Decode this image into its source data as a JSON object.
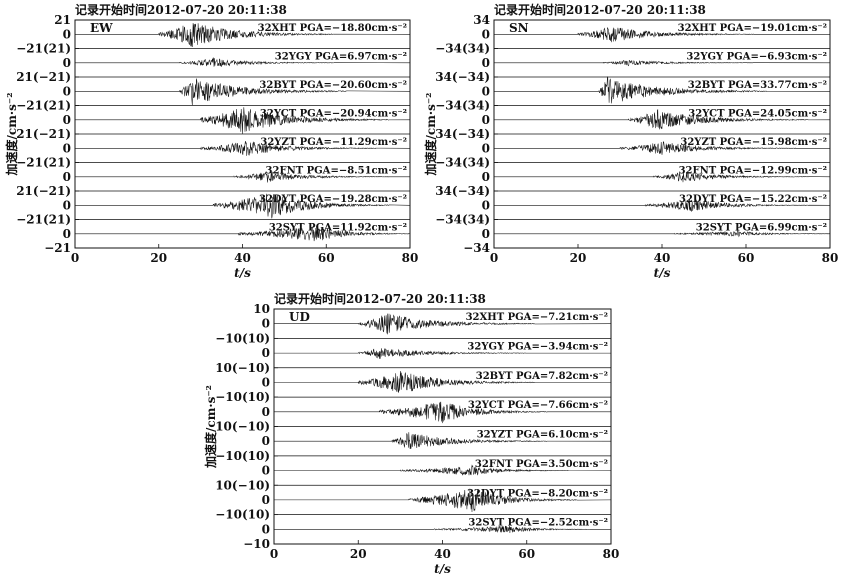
{
  "record_start": "记录开始时间2012-07-20  20:11:38",
  "y_axis_label": "加速度/cm·s⁻²",
  "x_axis_label": "t/s",
  "chart_data": [
    {
      "type": "line",
      "component": "EW",
      "xlim": [
        0,
        80
      ],
      "x_ticks": [
        "0",
        "20",
        "40",
        "60",
        "80"
      ],
      "y_ticks_top": "21",
      "y_ticks_between": [
        "−21(21)",
        "21(−21)",
        "−21(21)",
        "21(−21)",
        "−21(21)",
        "21(−21)",
        "−21(21)"
      ],
      "y_ticks_bottom": "−21",
      "y_zero": "0",
      "traces": [
        {
          "station": "32XHT",
          "label": "32XHT PGA=−18.80cm·s⁻²",
          "pga": -18.8,
          "t_start": 20,
          "t_peak": 28,
          "t_end": 62
        },
        {
          "station": "32YGY",
          "label": "32YGY PGA=6.97cm·s⁻²",
          "pga": 6.97,
          "t_start": 25,
          "t_peak": 33,
          "t_end": 62
        },
        {
          "station": "32BYT",
          "label": "32BYT PGA=−20.60cm·s⁻²",
          "pga": -20.6,
          "t_start": 25,
          "t_peak": 28,
          "t_end": 65
        },
        {
          "station": "32YCT",
          "label": "32YCT PGA=−20.94cm·s⁻²",
          "pga": -20.94,
          "t_start": 30,
          "t_peak": 40,
          "t_end": 75
        },
        {
          "station": "32YZT",
          "label": "32YZT PGA=−11.29cm·s⁻²",
          "pga": -11.29,
          "t_start": 30,
          "t_peak": 41,
          "t_end": 72
        },
        {
          "station": "32FNT",
          "label": "32FNT PGA=−8.51cm·s⁻²",
          "pga": -8.51,
          "t_start": 38,
          "t_peak": 46,
          "t_end": 75
        },
        {
          "station": "32DYT",
          "label": "32DYT PGA=−19.28cm·s⁻²",
          "pga": -19.28,
          "t_start": 33,
          "t_peak": 47,
          "t_end": 75
        },
        {
          "station": "32SYT",
          "label": "32SYT PGA=11.92cm·s⁻²",
          "pga": 11.92,
          "t_start": 39,
          "t_peak": 58,
          "t_end": 80
        }
      ]
    },
    {
      "type": "line",
      "component": "SN",
      "xlim": [
        0,
        80
      ],
      "x_ticks": [
        "0",
        "20",
        "40",
        "60",
        "80"
      ],
      "y_ticks_top": "34",
      "y_ticks_between": [
        "−34(34)",
        "34(−34)",
        "−34(34)",
        "34(−34)",
        "−34(34)",
        "34(−34)",
        "−34(34)"
      ],
      "y_ticks_bottom": "−34",
      "y_zero": "0",
      "traces": [
        {
          "station": "32XHT",
          "label": "32XHT PGA=−19.01cm·s⁻²",
          "pga": -19.01,
          "t_start": 20,
          "t_peak": 28,
          "t_end": 62
        },
        {
          "station": "32YGY",
          "label": "32YGY PGA=−6.93cm·s⁻²",
          "pga": -6.93,
          "t_start": 26,
          "t_peak": 32,
          "t_end": 62
        },
        {
          "station": "32BYT",
          "label": "32BYT PGA=33.77cm·s⁻²",
          "pga": 33.77,
          "t_start": 25,
          "t_peak": 27,
          "t_end": 65
        },
        {
          "station": "32YCT",
          "label": "32YCT PGA=24.05cm·s⁻²",
          "pga": 24.05,
          "t_start": 32,
          "t_peak": 39,
          "t_end": 75
        },
        {
          "station": "32YZT",
          "label": "32YZT PGA=−15.98cm·s⁻²",
          "pga": -15.98,
          "t_start": 30,
          "t_peak": 40,
          "t_end": 72
        },
        {
          "station": "32FNT",
          "label": "32FNT PGA=−12.99cm·s⁻²",
          "pga": -12.99,
          "t_start": 38,
          "t_peak": 45,
          "t_end": 75
        },
        {
          "station": "32DYT",
          "label": "32DYT PGA=−15.22cm·s⁻²",
          "pga": -15.22,
          "t_start": 36,
          "t_peak": 47,
          "t_end": 75
        },
        {
          "station": "32SYT",
          "label": "32SYT PGA=6.99cm·s⁻²",
          "pga": 6.99,
          "t_start": 43,
          "t_peak": 58,
          "t_end": 80
        }
      ]
    },
    {
      "type": "line",
      "component": "UD",
      "xlim": [
        0,
        80
      ],
      "x_ticks": [
        "0",
        "20",
        "40",
        "60",
        "80"
      ],
      "y_ticks_top": "10",
      "y_ticks_between": [
        "−10(10)",
        "10(−10)",
        "−10(10)",
        "10(−10)",
        "−10(10)",
        "10(−10)",
        "−10(10)"
      ],
      "y_ticks_bottom": "−10",
      "y_zero": "0",
      "traces": [
        {
          "station": "32XHT",
          "label": "32XHT PGA=−7.21cm·s⁻²",
          "pga": -7.21,
          "t_start": 20,
          "t_peak": 27,
          "t_end": 62
        },
        {
          "station": "32YGY",
          "label": "32YGY PGA=−3.94cm·s⁻²",
          "pga": -3.94,
          "t_start": 20,
          "t_peak": 25,
          "t_end": 60
        },
        {
          "station": "32BYT",
          "label": "32BYT PGA=7.82cm·s⁻²",
          "pga": 7.82,
          "t_start": 20,
          "t_peak": 30,
          "t_end": 62
        },
        {
          "station": "32YCT",
          "label": "32YCT PGA=−7.66cm·s⁻²",
          "pga": -7.66,
          "t_start": 25,
          "t_peak": 40,
          "t_end": 65
        },
        {
          "station": "32YZT",
          "label": "32YZT PGA=6.10cm·s⁻²",
          "pga": 6.1,
          "t_start": 28,
          "t_peak": 32,
          "t_end": 65
        },
        {
          "station": "32FNT",
          "label": "32FNT PGA=3.50cm·s⁻²",
          "pga": 3.5,
          "t_start": 30,
          "t_peak": 47,
          "t_end": 70
        },
        {
          "station": "32DYT",
          "label": "32DYT PGA=−8.20cm·s⁻²",
          "pga": -8.2,
          "t_start": 32,
          "t_peak": 47,
          "t_end": 72
        },
        {
          "station": "32SYT",
          "label": "32SYT PGA=−2.52cm·s⁻²",
          "pga": -2.52,
          "t_start": 38,
          "t_peak": 56,
          "t_end": 75
        }
      ]
    }
  ]
}
